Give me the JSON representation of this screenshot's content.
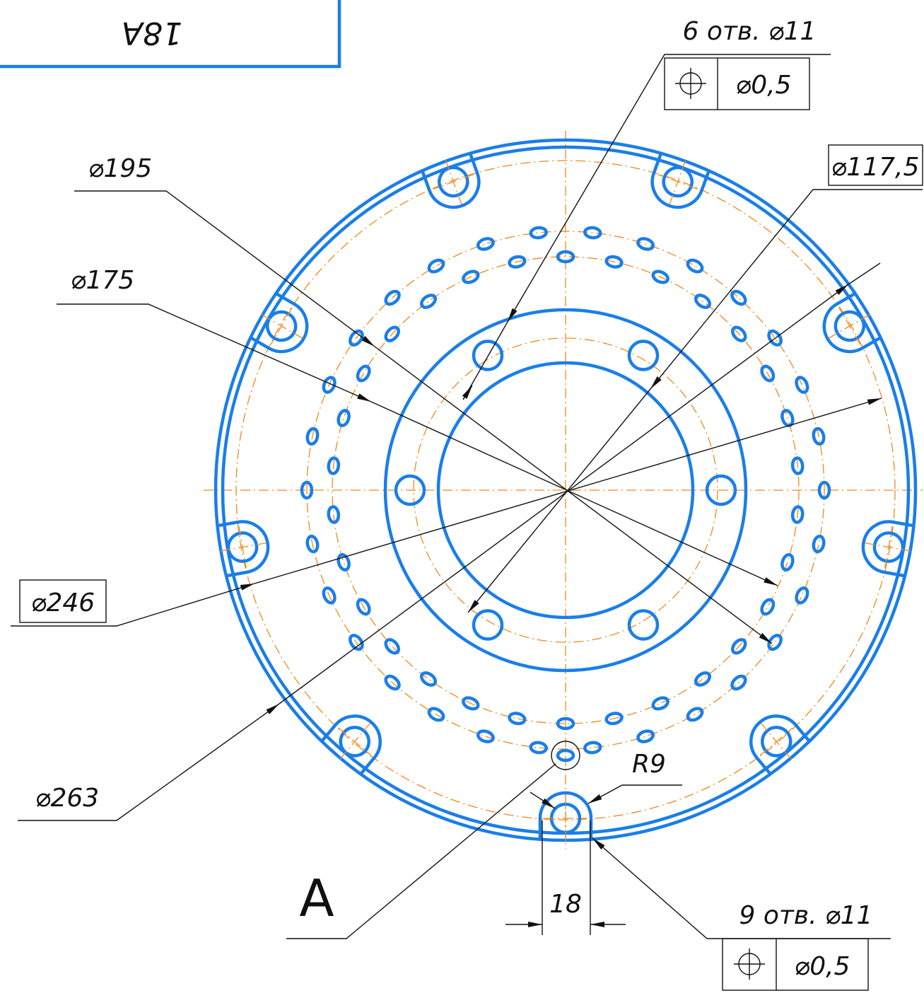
{
  "stamp": "18А",
  "callouts": {
    "holes_top": "6 отв. ⌀11",
    "holes_top_tolerance": "⌀0,5",
    "d117": "⌀117,5",
    "d195": "⌀195",
    "d175": "⌀175",
    "d246": "⌀246",
    "d263": "⌀263",
    "radius": "R9",
    "view": "А",
    "width": "18",
    "holes_bottom": "9 отв. ⌀11",
    "holes_bottom_tolerance": "⌀0,5"
  }
}
